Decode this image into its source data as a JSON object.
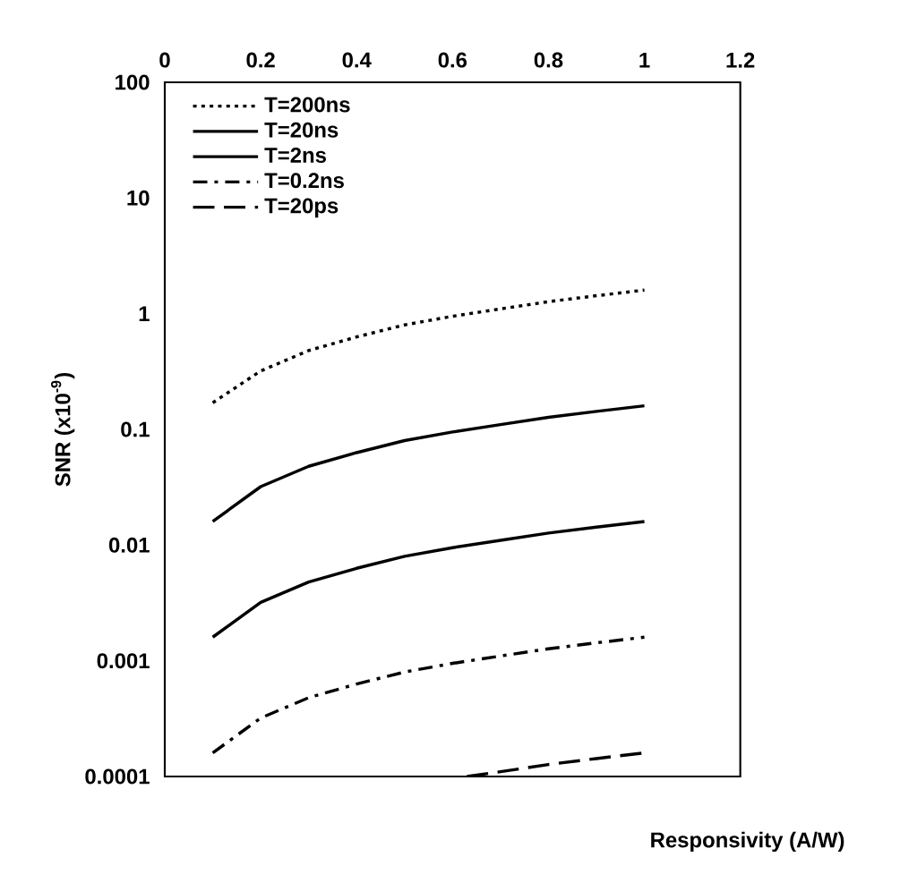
{
  "chart_data": {
    "type": "line",
    "xlabel": "Responsivity (A/W)",
    "ylabel": "SNR (x10$^{-9}$)",
    "log": "y",
    "xlim": [
      0,
      1.2
    ],
    "xticks": [
      0,
      0.2,
      0.4,
      0.6,
      0.8,
      1,
      1.2
    ],
    "ylim": [
      0.0001,
      100
    ],
    "yticks": [
      0.0001,
      0.001,
      0.01,
      0.1,
      1,
      10,
      100
    ],
    "legend": "top left",
    "grid": false,
    "marker": "none",
    "series": [
      {
        "name": "T=200ns",
        "color": "#000000",
        "line_style": "dotted",
        "x": [
          0.1,
          0.2,
          0.3,
          0.4,
          0.5,
          0.6,
          0.7,
          0.8,
          0.9,
          1.0
        ],
        "values": [
          0.17,
          0.32,
          0.48,
          0.63,
          0.8,
          0.95,
          1.1,
          1.27,
          1.43,
          1.6
        ]
      },
      {
        "name": "T=20ns",
        "color": "#000000",
        "line_style": "solid",
        "x": [
          0.1,
          0.2,
          0.3,
          0.4,
          0.5,
          0.6,
          0.7,
          0.8,
          0.9,
          1.0
        ],
        "values": [
          0.016,
          0.032,
          0.048,
          0.063,
          0.08,
          0.095,
          0.11,
          0.127,
          0.143,
          0.16
        ]
      },
      {
        "name": "T=2ns",
        "color": "#000000",
        "line_style": "solid",
        "x": [
          0.1,
          0.2,
          0.3,
          0.4,
          0.5,
          0.6,
          0.7,
          0.8,
          0.9,
          1.0
        ],
        "values": [
          0.0016,
          0.0032,
          0.0048,
          0.0063,
          0.008,
          0.0095,
          0.011,
          0.0127,
          0.0143,
          0.016
        ]
      },
      {
        "name": "T=0.2ns",
        "color": "#000000",
        "line_style": "dashdot",
        "x": [
          0.1,
          0.2,
          0.3,
          0.4,
          0.5,
          0.6,
          0.7,
          0.8,
          0.9,
          1.0
        ],
        "values": [
          0.00016,
          0.00032,
          0.00048,
          0.00063,
          0.0008,
          0.00095,
          0.0011,
          0.00127,
          0.00143,
          0.0016
        ]
      },
      {
        "name": "T=20ps",
        "color": "#000000",
        "line_style": "dashed",
        "x": [
          0.63,
          0.7,
          0.8,
          0.9,
          1.0
        ],
        "values": [
          0.0001,
          0.00011,
          0.000127,
          0.000143,
          0.00016
        ]
      }
    ]
  }
}
